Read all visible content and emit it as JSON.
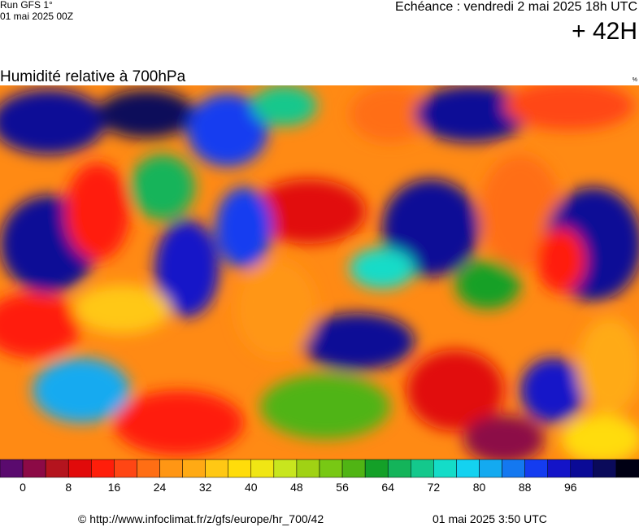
{
  "header": {
    "run": "Run GFS 1°",
    "run_date": "01 mai 2025 00Z",
    "valid_time": "Echéance : vendredi 2 mai 2025 18h UTC",
    "lead": "+ 42H"
  },
  "map": {
    "title": "Humidité relative à 700hPa",
    "unit": "%"
  },
  "colorbar": {
    "colors": [
      "#5a0a6e",
      "#8c0a46",
      "#b4141e",
      "#e10a0a",
      "#ff1e0a",
      "#ff4614",
      "#ff6e14",
      "#ff9614",
      "#ffaa14",
      "#ffc814",
      "#ffdc0a",
      "#f0e614",
      "#c8e61e",
      "#a0d214",
      "#78c814",
      "#50b414",
      "#14a028",
      "#14b45a",
      "#14c88c",
      "#14dcc8",
      "#14d2f0",
      "#14aaf0",
      "#1478f0",
      "#143cf0",
      "#1414c8",
      "#0a0a96",
      "#0a0a5a",
      "#000014"
    ],
    "ticks": [
      0,
      8,
      16,
      24,
      32,
      40,
      48,
      56,
      64,
      72,
      80,
      88,
      96
    ]
  },
  "footer": {
    "source": "© http://www.infoclimat.fr/z/gfs/europe/hr_700/42",
    "generated": "01 mai 2025  3:50 UTC"
  }
}
